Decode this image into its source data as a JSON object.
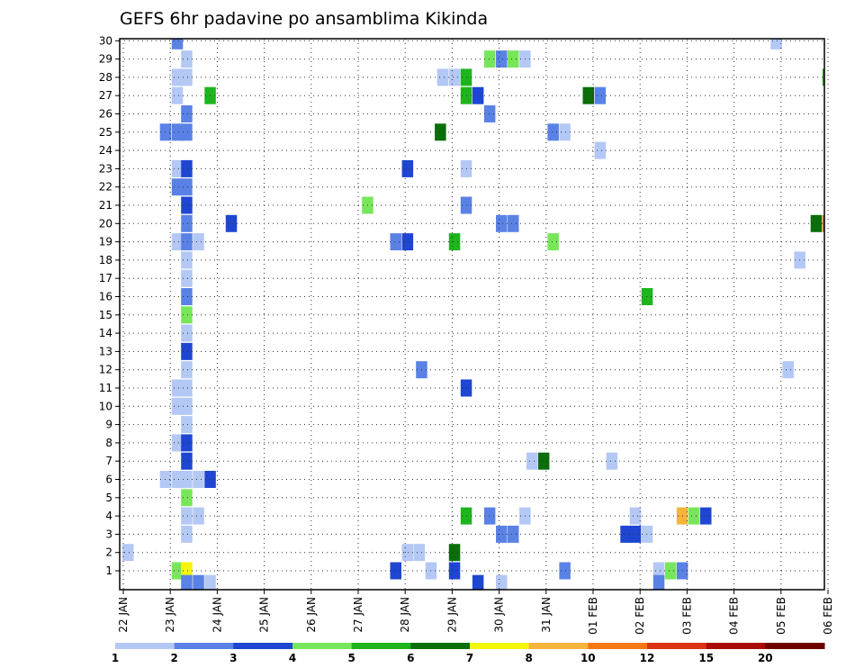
{
  "chart_data": {
    "type": "heatmap",
    "title": "GEFS 6hr padavine po ansamblima Kikinda",
    "x_tick_labels": [
      "22 JAN",
      "23 JAN",
      "24 JAN",
      "25 JAN",
      "26 JAN",
      "27 JAN",
      "28 JAN",
      "29 JAN",
      "30 JAN",
      "31 JAN",
      "01 FEB",
      "02 FEB",
      "03 FEB",
      "04 FEB",
      "05 FEB",
      "06 FEB"
    ],
    "y_tick_labels": [
      "1",
      "2",
      "3",
      "4",
      "5",
      "6",
      "7",
      "8",
      "9",
      "10",
      "11",
      "12",
      "13",
      "14",
      "15",
      "16",
      "17",
      "18",
      "19",
      "20",
      "21",
      "22",
      "23",
      "24",
      "25",
      "26",
      "27",
      "28",
      "29",
      "30"
    ],
    "colorbar": {
      "levels": [
        "1",
        "2",
        "3",
        "4",
        "5",
        "6",
        "7",
        "8",
        "10",
        "12",
        "15",
        "20"
      ],
      "colors": [
        "#b4c8f5",
        "#5a82e6",
        "#1e46d2",
        "#78e65a",
        "#1eb41e",
        "#0a6e0a",
        "#f5f50a",
        "#f5b43c",
        "#f57814",
        "#dc3214",
        "#aa0a0a",
        "#6e0000"
      ]
    },
    "grid": true,
    "cells": [
      {
        "x": 1.1,
        "y": 2,
        "c": 0
      },
      {
        "x": 2.15,
        "y": 30,
        "c": 1
      },
      {
        "x": 2.35,
        "y": 29,
        "c": 0
      },
      {
        "x": 2.15,
        "y": 28,
        "c": 0
      },
      {
        "x": 2.35,
        "y": 28,
        "c": 0
      },
      {
        "x": 2.15,
        "y": 27,
        "c": 0
      },
      {
        "x": 2.35,
        "y": 26,
        "c": 1
      },
      {
        "x": 1.9,
        "y": 25,
        "c": 1
      },
      {
        "x": 2.15,
        "y": 25,
        "c": 1
      },
      {
        "x": 2.35,
        "y": 25,
        "c": 1
      },
      {
        "x": 2.15,
        "y": 23,
        "c": 0
      },
      {
        "x": 2.35,
        "y": 23,
        "c": 2
      },
      {
        "x": 2.15,
        "y": 22,
        "c": 1
      },
      {
        "x": 2.35,
        "y": 22,
        "c": 1
      },
      {
        "x": 2.35,
        "y": 21,
        "c": 2
      },
      {
        "x": 2.35,
        "y": 20,
        "c": 1
      },
      {
        "x": 2.15,
        "y": 19,
        "c": 0
      },
      {
        "x": 2.35,
        "y": 19,
        "c": 1
      },
      {
        "x": 2.6,
        "y": 19,
        "c": 0
      },
      {
        "x": 2.35,
        "y": 18,
        "c": 0
      },
      {
        "x": 2.35,
        "y": 17,
        "c": 0
      },
      {
        "x": 2.35,
        "y": 16,
        "c": 1
      },
      {
        "x": 2.35,
        "y": 15,
        "c": 3
      },
      {
        "x": 2.35,
        "y": 14,
        "c": 0
      },
      {
        "x": 2.35,
        "y": 13,
        "c": 2
      },
      {
        "x": 2.35,
        "y": 12,
        "c": 0
      },
      {
        "x": 2.15,
        "y": 11,
        "c": 0
      },
      {
        "x": 2.35,
        "y": 11,
        "c": 0
      },
      {
        "x": 2.15,
        "y": 10,
        "c": 0
      },
      {
        "x": 2.35,
        "y": 10,
        "c": 0
      },
      {
        "x": 2.35,
        "y": 9,
        "c": 0
      },
      {
        "x": 2.15,
        "y": 8,
        "c": 0
      },
      {
        "x": 2.35,
        "y": 8,
        "c": 2
      },
      {
        "x": 2.35,
        "y": 7,
        "c": 2
      },
      {
        "x": 1.9,
        "y": 6,
        "c": 0
      },
      {
        "x": 2.15,
        "y": 6,
        "c": 0
      },
      {
        "x": 2.35,
        "y": 6,
        "c": 0
      },
      {
        "x": 2.6,
        "y": 6,
        "c": 0
      },
      {
        "x": 2.85,
        "y": 6,
        "c": 2
      },
      {
        "x": 2.35,
        "y": 5,
        "c": 3
      },
      {
        "x": 2.35,
        "y": 4,
        "c": 0
      },
      {
        "x": 2.6,
        "y": 4,
        "c": 0
      },
      {
        "x": 2.35,
        "y": 3,
        "c": 0
      },
      {
        "x": 2.15,
        "y": 1,
        "c": 3
      },
      {
        "x": 2.35,
        "y": 1,
        "c": 6
      },
      {
        "x": 2.35,
        "y": 0.3,
        "c": 1
      },
      {
        "x": 2.6,
        "y": 0.3,
        "c": 1
      },
      {
        "x": 2.85,
        "y": 0.3,
        "c": 0
      },
      {
        "x": 2.85,
        "y": 27,
        "c": 4
      },
      {
        "x": 3.3,
        "y": 20,
        "c": 2
      },
      {
        "x": 6.2,
        "y": 21,
        "c": 3
      },
      {
        "x": 6.8,
        "y": 19,
        "c": 1
      },
      {
        "x": 7.05,
        "y": 19,
        "c": 2
      },
      {
        "x": 7.05,
        "y": 23,
        "c": 2
      },
      {
        "x": 7.05,
        "y": 2,
        "c": 0
      },
      {
        "x": 7.3,
        "y": 2,
        "c": 0
      },
      {
        "x": 6.8,
        "y": 1,
        "c": 2
      },
      {
        "x": 7.55,
        "y": 1,
        "c": 0
      },
      {
        "x": 7.35,
        "y": 12,
        "c": 1
      },
      {
        "x": 7.8,
        "y": 28,
        "c": 0
      },
      {
        "x": 8.05,
        "y": 28,
        "c": 0
      },
      {
        "x": 8.3,
        "y": 28,
        "c": 4
      },
      {
        "x": 8.3,
        "y": 27,
        "c": 4
      },
      {
        "x": 8.55,
        "y": 27,
        "c": 2
      },
      {
        "x": 8.05,
        "y": 19,
        "c": 4
      },
      {
        "x": 8.3,
        "y": 23,
        "c": 0
      },
      {
        "x": 8.3,
        "y": 21,
        "c": 1
      },
      {
        "x": 8.3,
        "y": 11,
        "c": 2
      },
      {
        "x": 7.75,
        "y": 25,
        "c": 5
      },
      {
        "x": 8.05,
        "y": 2,
        "c": 5
      },
      {
        "x": 8.05,
        "y": 1,
        "c": 2
      },
      {
        "x": 8.3,
        "y": 4,
        "c": 4
      },
      {
        "x": 8.55,
        "y": 0.3,
        "c": 2
      },
      {
        "x": 8.8,
        "y": 29,
        "c": 3
      },
      {
        "x": 9.05,
        "y": 29,
        "c": 1
      },
      {
        "x": 9.3,
        "y": 29,
        "c": 3
      },
      {
        "x": 9.55,
        "y": 29,
        "c": 0
      },
      {
        "x": 8.8,
        "y": 26,
        "c": 1
      },
      {
        "x": 9.05,
        "y": 20,
        "c": 1
      },
      {
        "x": 9.3,
        "y": 20,
        "c": 1
      },
      {
        "x": 8.8,
        "y": 4,
        "c": 1
      },
      {
        "x": 9.05,
        "y": 3,
        "c": 1
      },
      {
        "x": 9.3,
        "y": 3,
        "c": 1
      },
      {
        "x": 9.55,
        "y": 4,
        "c": 0
      },
      {
        "x": 9.05,
        "y": 0.3,
        "c": 0
      },
      {
        "x": 9.7,
        "y": 7,
        "c": 0
      },
      {
        "x": 9.95,
        "y": 7,
        "c": 5
      },
      {
        "x": 10.15,
        "y": 25,
        "c": 1
      },
      {
        "x": 10.4,
        "y": 25,
        "c": 0
      },
      {
        "x": 10.15,
        "y": 19,
        "c": 3
      },
      {
        "x": 10.4,
        "y": 1,
        "c": 1
      },
      {
        "x": 10.9,
        "y": 27,
        "c": 5
      },
      {
        "x": 11.15,
        "y": 27,
        "c": 1
      },
      {
        "x": 11.15,
        "y": 24,
        "c": 0
      },
      {
        "x": 11.4,
        "y": 7,
        "c": 0
      },
      {
        "x": 11.7,
        "y": 3,
        "c": 2
      },
      {
        "x": 11.9,
        "y": 3,
        "c": 2
      },
      {
        "x": 11.9,
        "y": 4,
        "c": 0
      },
      {
        "x": 12.15,
        "y": 3,
        "c": 0
      },
      {
        "x": 12.15,
        "y": 16,
        "c": 4
      },
      {
        "x": 12.4,
        "y": 1,
        "c": 0
      },
      {
        "x": 12.65,
        "y": 1,
        "c": 3
      },
      {
        "x": 12.9,
        "y": 1,
        "c": 1
      },
      {
        "x": 12.4,
        "y": 0.3,
        "c": 1
      },
      {
        "x": 12.9,
        "y": 4,
        "c": 7
      },
      {
        "x": 13.15,
        "y": 4,
        "c": 3
      },
      {
        "x": 13.4,
        "y": 4,
        "c": 2
      },
      {
        "x": 14.9,
        "y": 30,
        "c": 0
      },
      {
        "x": 15.15,
        "y": 12,
        "c": 0
      },
      {
        "x": 15.4,
        "y": 18,
        "c": 0
      },
      {
        "x": 15.75,
        "y": 20,
        "c": 5
      },
      {
        "x": 16.0,
        "y": 20,
        "c": 8
      },
      {
        "x": 16.0,
        "y": 28,
        "c": 4
      }
    ]
  }
}
